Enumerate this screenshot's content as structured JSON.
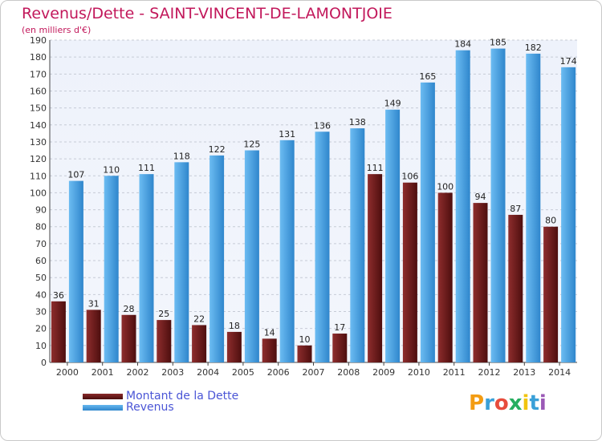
{
  "header": {
    "title": "Revenus/Dette - SAINT-VINCENT-DE-LAMONTJOIE",
    "subtitle": "(en milliers d'€)"
  },
  "logo": {
    "text": "Proxiti",
    "colors": [
      "#f39c12",
      "#3aa0d8",
      "#e74c3c",
      "#27ae60",
      "#f1c40f",
      "#3aa0d8",
      "#9b59b6"
    ]
  },
  "chart_data": {
    "type": "bar",
    "categories": [
      "2000",
      "2001",
      "2002",
      "2003",
      "2004",
      "2005",
      "2006",
      "2007",
      "2008",
      "2009",
      "2010",
      "2011",
      "2012",
      "2013",
      "2014"
    ],
    "series": [
      {
        "name": "Montant de la Dette",
        "color": "#6b1a1a",
        "values": [
          36,
          31,
          28,
          25,
          22,
          18,
          14,
          10,
          17,
          111,
          106,
          100,
          94,
          87,
          80
        ]
      },
      {
        "name": "Revenus",
        "color": "#4ea5e8",
        "values": [
          107,
          110,
          111,
          118,
          122,
          125,
          131,
          136,
          138,
          149,
          165,
          184,
          185,
          182,
          174
        ]
      }
    ],
    "title": "Revenus/Dette - SAINT-VINCENT-DE-LAMONTJOIE",
    "ylabel": "(en milliers d'€)",
    "ylim": [
      0,
      190
    ],
    "ytick_step": 10,
    "grid": true,
    "legend_position": "bottom-left"
  }
}
